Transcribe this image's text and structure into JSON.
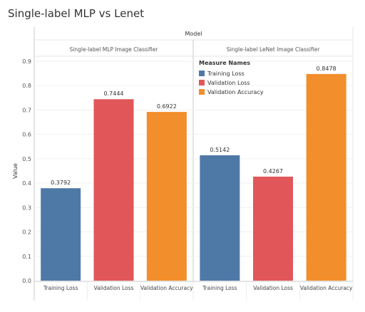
{
  "title": "Single-label MLP vs Lenet",
  "chart_data": {
    "type": "bar",
    "column_header": "Model",
    "ylabel": "Value",
    "ylim": [
      0,
      0.9
    ],
    "y_ticks": [
      "0.0",
      "0.1",
      "0.2",
      "0.3",
      "0.4",
      "0.5",
      "0.6",
      "0.7",
      "0.8",
      "0.9"
    ],
    "grid": true,
    "legend": {
      "title": "Measure Names",
      "placement": "top-left of right panel",
      "items": [
        {
          "name": "Training Loss",
          "color": "#4e79a7"
        },
        {
          "name": "Validation Loss",
          "color": "#e15759"
        },
        {
          "name": "Validation Accuracy",
          "color": "#f28e2b"
        }
      ]
    },
    "panels": [
      {
        "name": "Single-label MLP Image Classifier",
        "bars": [
          {
            "category": "Training Loss",
            "value": 0.3792,
            "label": "0.3792",
            "color": "#4e79a7"
          },
          {
            "category": "Validation Loss",
            "value": 0.7444,
            "label": "0.7444",
            "color": "#e15759"
          },
          {
            "category": "Validation Accuracy",
            "value": 0.6922,
            "label": "0.6922",
            "color": "#f28e2b"
          }
        ]
      },
      {
        "name": "Single-label LeNet Image Classifier",
        "bars": [
          {
            "category": "Training Loss",
            "value": 0.5142,
            "label": "0.5142",
            "color": "#4e79a7"
          },
          {
            "category": "Validation Loss",
            "value": 0.4267,
            "label": "0.4267",
            "color": "#e15759"
          },
          {
            "category": "Validation Accuracy",
            "value": 0.8478,
            "label": "0.8478",
            "color": "#f28e2b"
          }
        ]
      }
    ]
  }
}
